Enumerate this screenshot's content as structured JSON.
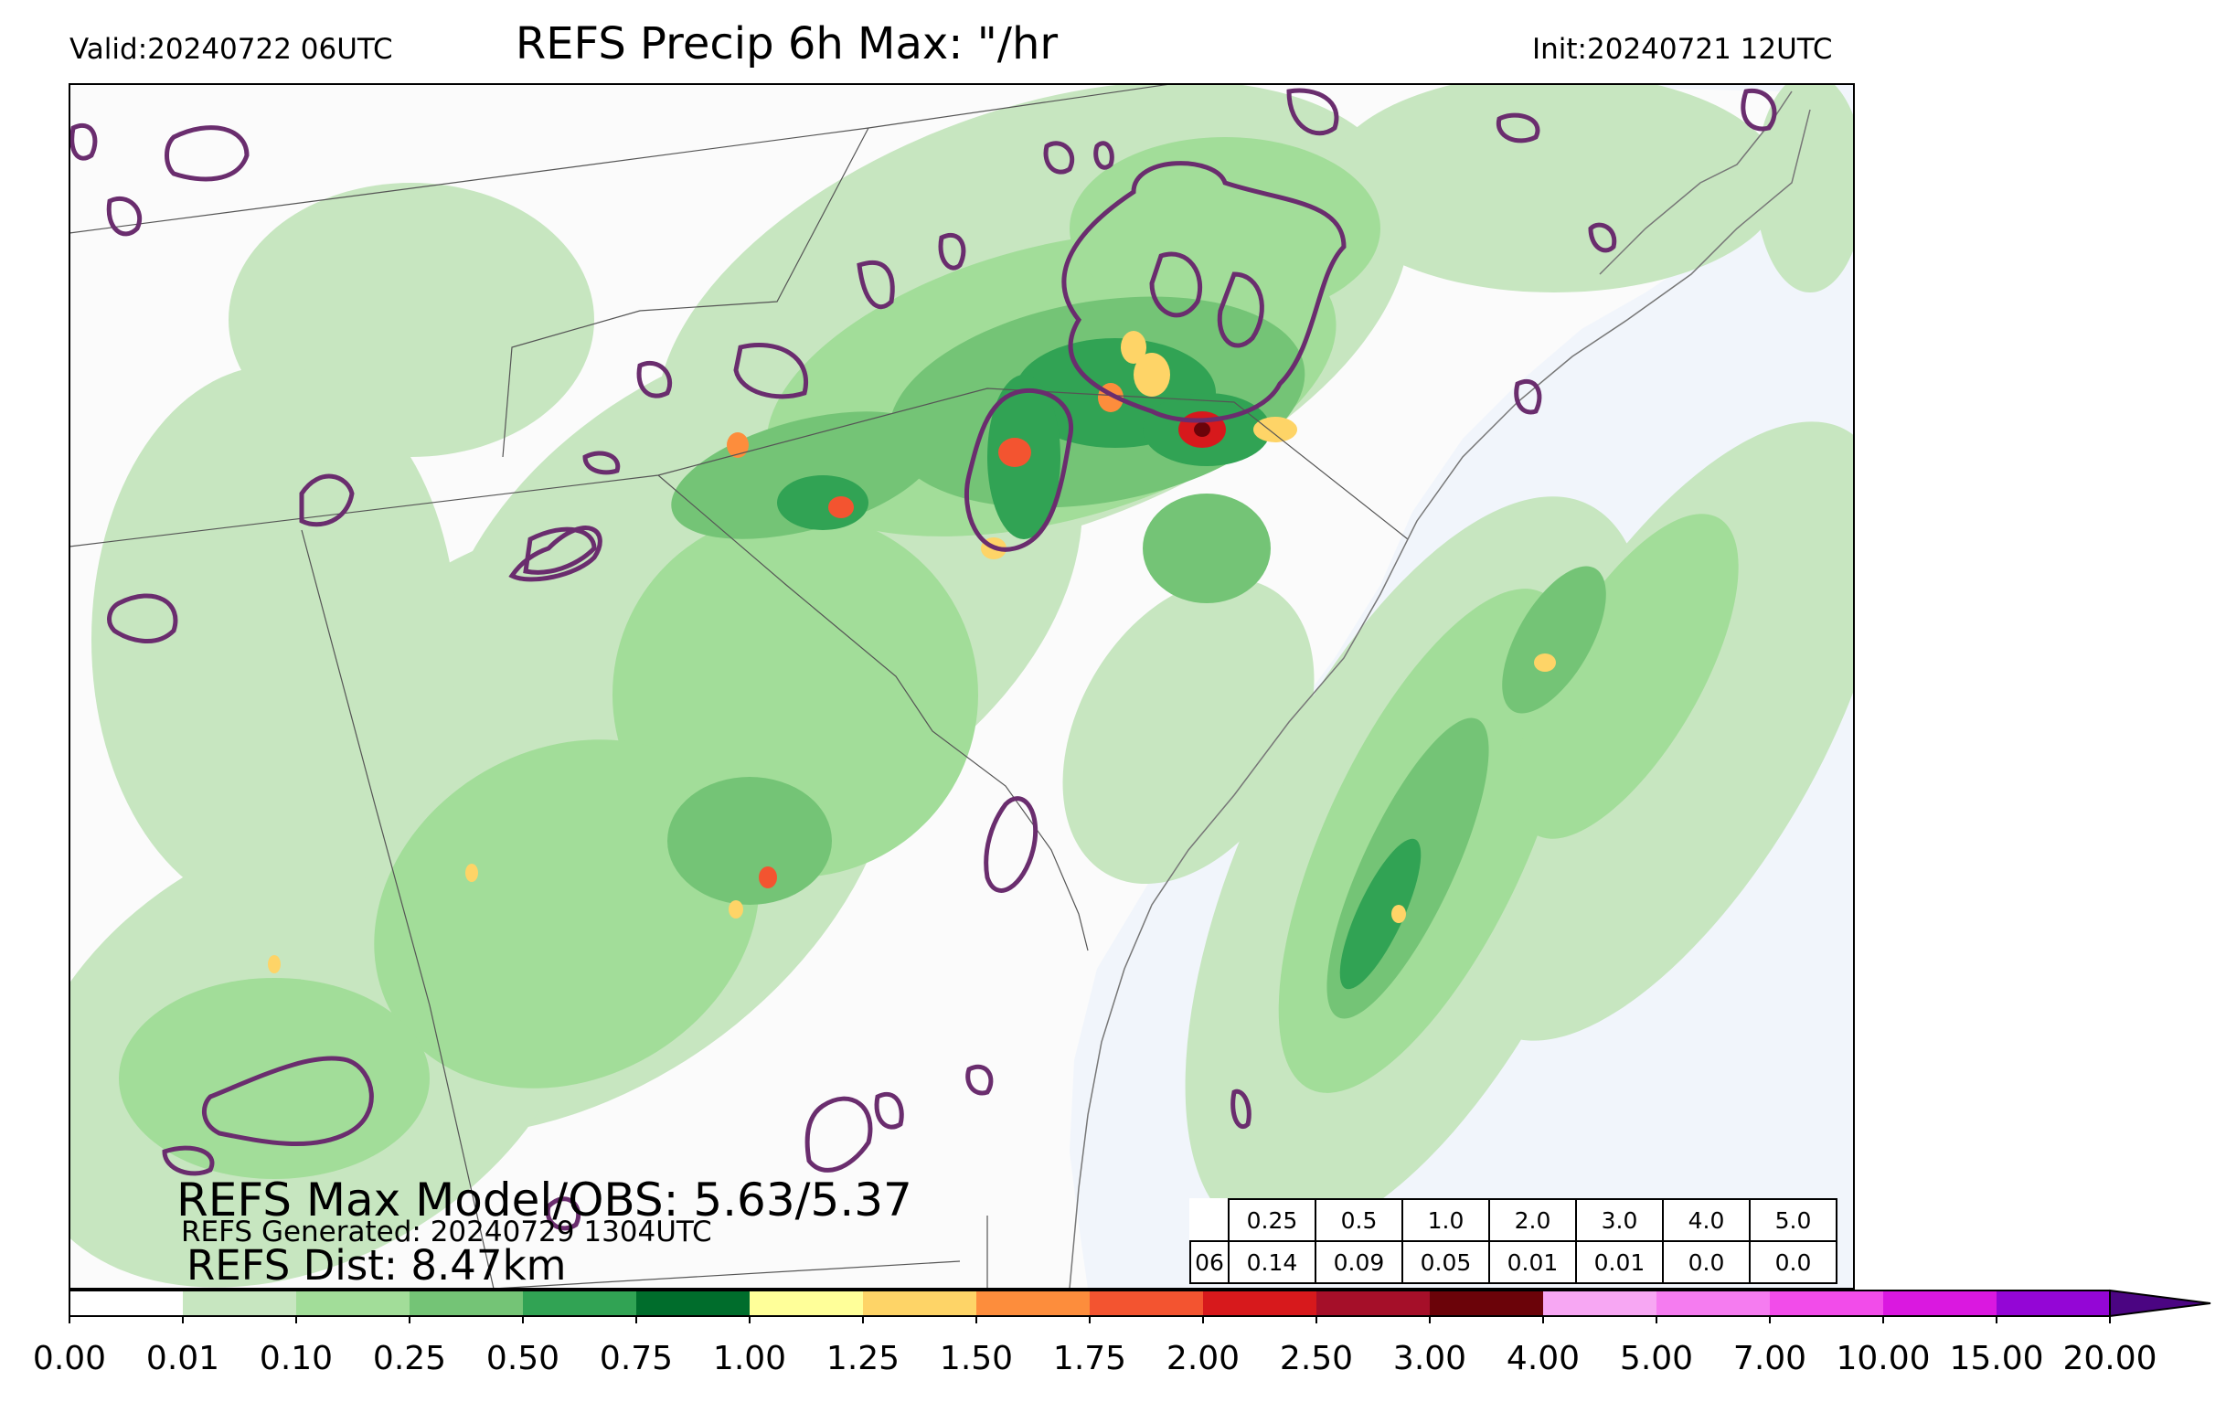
{
  "header": {
    "valid": "Valid:20240722 06UTC",
    "title": "REFS Precip 6h Max: \"/hr",
    "init": "Init:20240721 12UTC"
  },
  "annotations": {
    "max_model_obs": "REFS Max Model/OBS: 5.63/5.37",
    "generated": "REFS Generated: 20240729 1304UTC",
    "dist": "REFS Dist: 8.47km"
  },
  "stats_table": {
    "thresholds": [
      "0.25",
      "0.5",
      "1.0",
      "2.0",
      "3.0",
      "4.0",
      "5.0"
    ],
    "row_label": "06",
    "values": [
      "0.14",
      "0.09",
      "0.05",
      "0.01",
      "0.01",
      "0.0",
      "0.0"
    ]
  },
  "colorbar": {
    "labels": [
      "0.00",
      "0.01",
      "0.10",
      "0.25",
      "0.50",
      "0.75",
      "1.00",
      "1.25",
      "1.50",
      "1.75",
      "2.00",
      "2.50",
      "3.00",
      "4.00",
      "5.00",
      "7.00",
      "10.00",
      "15.00",
      "20.00"
    ],
    "colors": [
      "#ffffff",
      "#c7e6c0",
      "#a2dd99",
      "#74c476",
      "#31a354",
      "#006d2c",
      "#ffff99",
      "#fed467",
      "#fd8d3c",
      "#f35430",
      "#d7191c",
      "#a50f29",
      "#6b0309",
      "#f7a7f3",
      "#f57cf0",
      "#f24cea",
      "#da18e0",
      "#9406d6"
    ],
    "extend_color": "#4b0582"
  },
  "legend_colors": {
    "ocean": "#f1f5fb",
    "land": "#fbfbfb",
    "observed_contour": "#6a2d6e"
  }
}
